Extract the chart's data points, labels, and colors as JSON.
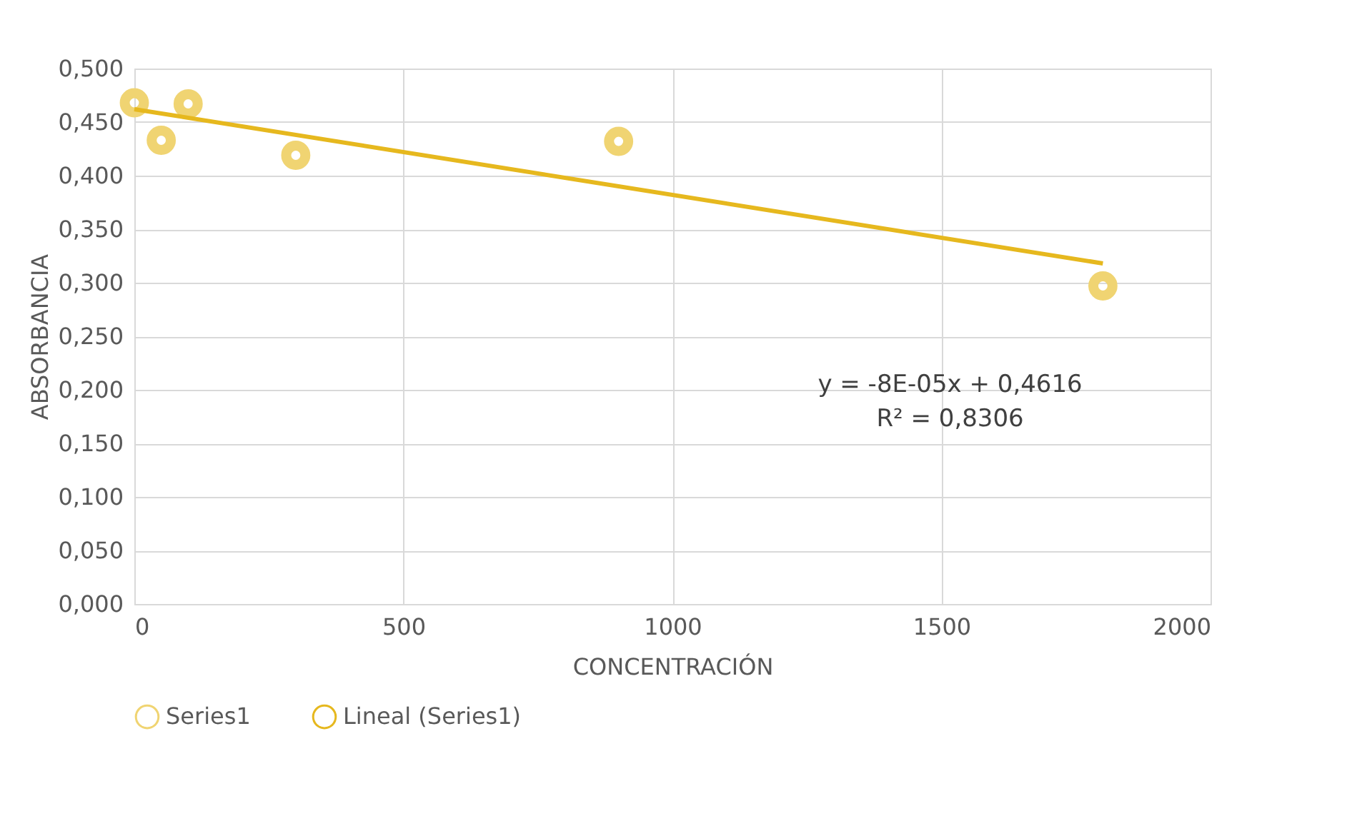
{
  "chart_data": {
    "type": "scatter",
    "xlabel": "CONCENTRACIÓN",
    "ylabel": "ABSORBANCIA",
    "x": [
      0,
      50,
      100,
      300,
      900,
      1800
    ],
    "series": [
      {
        "name": "Series1",
        "color": "#f0d472",
        "marker": "circle",
        "values": [
          0.468,
          0.433,
          0.467,
          0.419,
          0.432,
          0.297
        ]
      },
      {
        "name": "Lineal (Series1)",
        "type": "line",
        "color": "#e6b81e",
        "marker": "none",
        "line_style": "solid",
        "x": [
          0,
          1800
        ],
        "values": [
          0.462,
          0.318
        ]
      }
    ],
    "xlim": [
      0,
      2000
    ],
    "xticks": [
      0,
      500,
      1000,
      1500,
      2000
    ],
    "ylim": [
      0,
      0.5
    ],
    "yticks": [
      {
        "value": 0,
        "label": "0,000"
      },
      {
        "value": 0.05,
        "label": "0,050"
      },
      {
        "value": 0.1,
        "label": "0,100"
      },
      {
        "value": 0.15,
        "label": "0,150"
      },
      {
        "value": 0.2,
        "label": "0,200"
      },
      {
        "value": 0.25,
        "label": "0,250"
      },
      {
        "value": 0.3,
        "label": "0,300"
      },
      {
        "value": 0.35,
        "label": "0,350"
      },
      {
        "value": 0.4,
        "label": "0,400"
      },
      {
        "value": 0.45,
        "label": "0,450"
      },
      {
        "value": 0.5,
        "label": "0,500"
      }
    ],
    "annotations": [
      "y = -8E-05x + 0,4616",
      "R² = 0,8306"
    ],
    "grid": true,
    "legend": "bottom"
  }
}
